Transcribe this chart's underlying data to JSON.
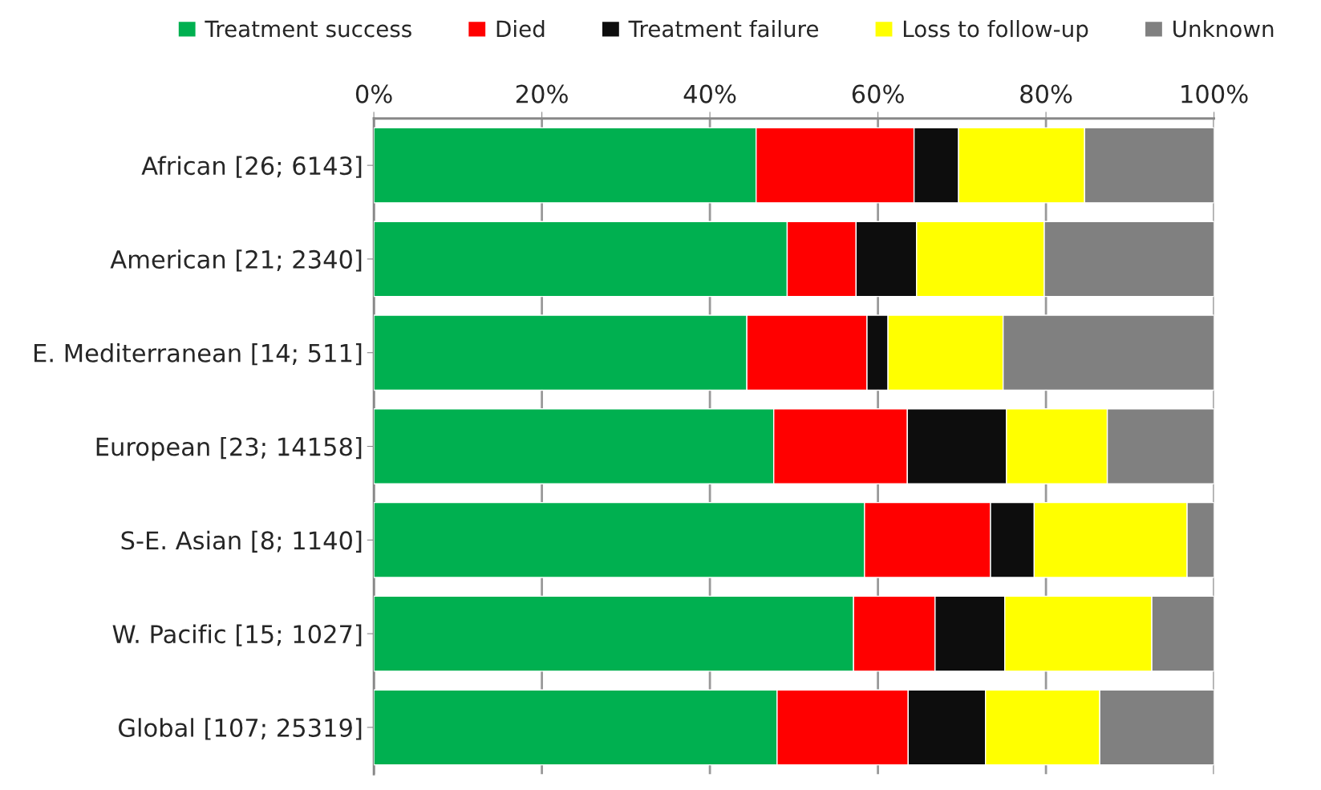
{
  "chart_data": {
    "type": "bar",
    "orientation": "horizontal",
    "stacked": true,
    "categories": [
      "African [26; 6143]",
      "American [21; 2340]",
      "E. Mediterranean [14; 511]",
      "European [23; 14158]",
      "S-E. Asian [8; 1140]",
      "W. Pacific [15; 1027]",
      "Global [107; 25319]"
    ],
    "series": [
      {
        "name": "Treatment success",
        "color": "#00b050",
        "values": [
          45.5,
          49.2,
          44.4,
          47.6,
          58.4,
          57.1,
          48.0
        ]
      },
      {
        "name": "Died",
        "color": "#ff0000",
        "values": [
          18.8,
          8.2,
          14.3,
          15.9,
          15.0,
          9.7,
          15.6
        ]
      },
      {
        "name": "Treatment failure",
        "color": "#0d0d0d",
        "values": [
          5.3,
          7.2,
          2.5,
          11.8,
          5.2,
          8.3,
          9.2
        ]
      },
      {
        "name": "Loss to follow-up",
        "color": "#ffff00",
        "values": [
          15.0,
          15.2,
          13.7,
          12.0,
          18.2,
          17.5,
          13.6
        ]
      },
      {
        "name": "Unknown",
        "color": "#808080",
        "values": [
          15.4,
          20.2,
          25.1,
          12.7,
          3.2,
          7.4,
          13.6
        ]
      }
    ],
    "xlim": [
      0,
      100
    ],
    "xticks": [
      {
        "value": 0,
        "label": "0%"
      },
      {
        "value": 20,
        "label": "20%"
      },
      {
        "value": 40,
        "label": "40%"
      },
      {
        "value": 60,
        "label": "60%"
      },
      {
        "value": 80,
        "label": "80%"
      },
      {
        "value": 100,
        "label": "100%"
      }
    ],
    "grid": "x",
    "legend": "top"
  }
}
